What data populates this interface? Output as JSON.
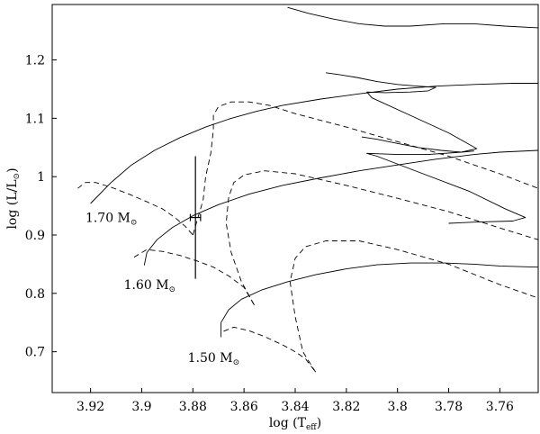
{
  "chart_data": {
    "type": "line",
    "xlabel": "log (T",
    "xlabel_sub": "eff",
    "xlabel_close": ")",
    "ylabel": "log (L/L",
    "ylabel_sub": "⊙",
    "ylabel_close": ")",
    "xlim": [
      3.935,
      3.745
    ],
    "ylim": [
      0.63,
      1.295
    ],
    "x_ticks": [
      3.92,
      3.9,
      3.88,
      3.86,
      3.84,
      3.82,
      3.8,
      3.78,
      3.76
    ],
    "x_tick_labels": [
      "3.92",
      "3.9",
      "3.88",
      "3.86",
      "3.84",
      "3.82",
      "3.8",
      "3.78",
      "3.76"
    ],
    "y_ticks": [
      0.7,
      0.8,
      0.9,
      1.0,
      1.1,
      1.2
    ],
    "y_tick_labels": [
      "0.7",
      "0.8",
      "0.9",
      "1",
      "1.1",
      "1.2"
    ],
    "grid": false,
    "labels": [
      {
        "text": "1.70 M",
        "sub": "⊙",
        "x": 3.922,
        "y": 0.93
      },
      {
        "text": "1.60 M",
        "sub": "⊙",
        "x": 3.907,
        "y": 0.815
      },
      {
        "text": "1.50 M",
        "sub": "⊙",
        "x": 3.882,
        "y": 0.69
      }
    ],
    "series": [
      {
        "style": "solid",
        "points": [
          [
            3.92,
            0.954
          ],
          [
            3.912,
            0.99
          ],
          [
            3.904,
            1.02
          ],
          [
            3.895,
            1.045
          ],
          [
            3.885,
            1.067
          ],
          [
            3.875,
            1.085
          ],
          [
            3.865,
            1.1
          ],
          [
            3.855,
            1.112
          ],
          [
            3.845,
            1.122
          ],
          [
            3.83,
            1.133
          ],
          [
            3.815,
            1.142
          ],
          [
            3.8,
            1.15
          ],
          [
            3.785,
            1.155
          ],
          [
            3.77,
            1.158
          ],
          [
            3.755,
            1.16
          ],
          [
            3.745,
            1.16
          ]
        ]
      },
      {
        "style": "solid",
        "points": [
          [
            3.899,
            0.848
          ],
          [
            3.898,
            0.87
          ],
          [
            3.894,
            0.892
          ],
          [
            3.888,
            0.913
          ],
          [
            3.88,
            0.933
          ],
          [
            3.87,
            0.952
          ],
          [
            3.858,
            0.97
          ],
          [
            3.845,
            0.985
          ],
          [
            3.83,
            0.998
          ],
          [
            3.815,
            1.01
          ],
          [
            3.8,
            1.02
          ],
          [
            3.785,
            1.03
          ],
          [
            3.77,
            1.038
          ],
          [
            3.76,
            1.042
          ],
          [
            3.745,
            1.045
          ]
        ]
      },
      {
        "style": "solid",
        "points": [
          [
            3.869,
            0.725
          ],
          [
            3.869,
            0.75
          ],
          [
            3.866,
            0.772
          ],
          [
            3.861,
            0.79
          ],
          [
            3.853,
            0.806
          ],
          [
            3.843,
            0.82
          ],
          [
            3.832,
            0.832
          ],
          [
            3.82,
            0.842
          ],
          [
            3.808,
            0.849
          ],
          [
            3.795,
            0.852
          ],
          [
            3.782,
            0.852
          ],
          [
            3.77,
            0.85
          ],
          [
            3.76,
            0.847
          ],
          [
            3.745,
            0.845
          ]
        ]
      },
      {
        "style": "solid",
        "points": [
          [
            3.843,
            1.29
          ],
          [
            3.835,
            1.28
          ],
          [
            3.825,
            1.27
          ],
          [
            3.815,
            1.262
          ],
          [
            3.805,
            1.258
          ],
          [
            3.795,
            1.258
          ],
          [
            3.782,
            1.262
          ],
          [
            3.77,
            1.262
          ],
          [
            3.758,
            1.258
          ],
          [
            3.745,
            1.255
          ]
        ]
      },
      {
        "style": "solid",
        "points": [
          [
            3.828,
            1.178
          ],
          [
            3.823,
            1.175
          ],
          [
            3.816,
            1.17
          ],
          [
            3.808,
            1.163
          ],
          [
            3.8,
            1.158
          ],
          [
            3.792,
            1.155
          ],
          [
            3.785,
            1.153
          ],
          [
            3.788,
            1.147
          ],
          [
            3.795,
            1.145
          ],
          [
            3.805,
            1.144
          ],
          [
            3.812,
            1.145
          ],
          [
            3.81,
            1.135
          ],
          [
            3.795,
            1.105
          ],
          [
            3.78,
            1.075
          ],
          [
            3.769,
            1.048
          ],
          [
            3.775,
            1.042
          ],
          [
            3.788,
            1.038
          ],
          [
            3.8,
            1.038
          ],
          [
            3.812,
            1.04
          ],
          [
            3.808,
            1.035
          ],
          [
            3.79,
            1.005
          ],
          [
            3.772,
            0.975
          ],
          [
            3.758,
            0.945
          ],
          [
            3.75,
            0.93
          ],
          [
            3.755,
            0.924
          ],
          [
            3.77,
            0.922
          ],
          [
            3.78,
            0.92
          ]
        ]
      },
      {
        "style": "solid",
        "points": [
          [
            3.814,
            1.068
          ],
          [
            3.808,
            1.064
          ],
          [
            3.8,
            1.057
          ],
          [
            3.792,
            1.05
          ],
          [
            3.783,
            1.045
          ],
          [
            3.775,
            1.042
          ],
          [
            3.77,
            1.044
          ]
        ]
      },
      {
        "style": "dashed",
        "points": [
          [
            3.925,
            0.98
          ],
          [
            3.922,
            0.99
          ],
          [
            3.918,
            0.99
          ],
          [
            3.912,
            0.982
          ],
          [
            3.905,
            0.97
          ],
          [
            3.898,
            0.957
          ],
          [
            3.892,
            0.945
          ],
          [
            3.887,
            0.93
          ],
          [
            3.883,
            0.915
          ],
          [
            3.88,
            0.9
          ]
        ]
      },
      {
        "style": "dashed",
        "points": [
          [
            3.88,
            0.9
          ],
          [
            3.876,
            0.96
          ],
          [
            3.875,
            1.0
          ],
          [
            3.873,
            1.04
          ],
          [
            3.872,
            1.08
          ],
          [
            3.872,
            1.105
          ],
          [
            3.87,
            1.12
          ],
          [
            3.865,
            1.128
          ],
          [
            3.858,
            1.128
          ],
          [
            3.85,
            1.122
          ],
          [
            3.84,
            1.108
          ],
          [
            3.82,
            1.085
          ],
          [
            3.8,
            1.06
          ],
          [
            3.78,
            1.035
          ],
          [
            3.76,
            1.005
          ],
          [
            3.745,
            0.98
          ]
        ]
      },
      {
        "style": "dashed",
        "points": [
          [
            3.903,
            0.862
          ],
          [
            3.898,
            0.875
          ],
          [
            3.892,
            0.872
          ],
          [
            3.885,
            0.865
          ],
          [
            3.878,
            0.855
          ],
          [
            3.872,
            0.845
          ],
          [
            3.866,
            0.83
          ],
          [
            3.86,
            0.81
          ],
          [
            3.856,
            0.78
          ]
        ]
      },
      {
        "style": "dashed",
        "points": [
          [
            3.856,
            0.78
          ],
          [
            3.861,
            0.82
          ],
          [
            3.865,
            0.87
          ],
          [
            3.867,
            0.92
          ],
          [
            3.866,
            0.965
          ],
          [
            3.864,
            0.99
          ],
          [
            3.86,
            1.003
          ],
          [
            3.852,
            1.01
          ],
          [
            3.84,
            1.005
          ],
          [
            3.82,
            0.985
          ],
          [
            3.8,
            0.963
          ],
          [
            3.78,
            0.94
          ],
          [
            3.76,
            0.912
          ],
          [
            3.745,
            0.892
          ]
        ]
      },
      {
        "style": "dashed",
        "points": [
          [
            3.868,
            0.735
          ],
          [
            3.864,
            0.742
          ],
          [
            3.858,
            0.736
          ],
          [
            3.852,
            0.726
          ],
          [
            3.845,
            0.712
          ],
          [
            3.84,
            0.7
          ],
          [
            3.836,
            0.688
          ],
          [
            3.832,
            0.665
          ]
        ]
      },
      {
        "style": "dashed",
        "points": [
          [
            3.832,
            0.665
          ],
          [
            3.837,
            0.7
          ],
          [
            3.84,
            0.76
          ],
          [
            3.842,
            0.82
          ],
          [
            3.84,
            0.86
          ],
          [
            3.836,
            0.88
          ],
          [
            3.828,
            0.89
          ],
          [
            3.815,
            0.89
          ],
          [
            3.8,
            0.875
          ],
          [
            3.78,
            0.85
          ],
          [
            3.76,
            0.815
          ],
          [
            3.745,
            0.792
          ]
        ]
      }
    ],
    "errorbars": [
      {
        "x": 3.879,
        "y": 0.93,
        "x_err": 0.002,
        "y_err_low": 0.105,
        "y_err_high": 0.105
      }
    ]
  }
}
